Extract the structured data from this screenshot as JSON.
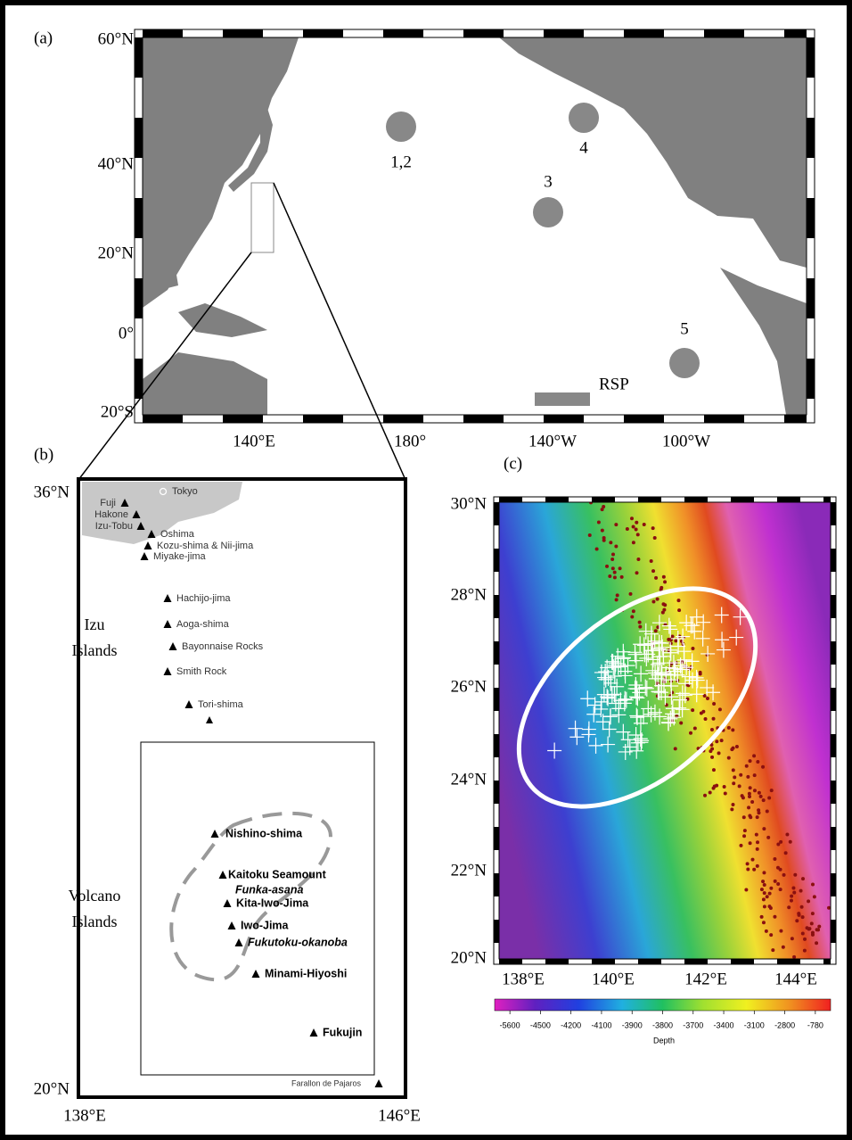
{
  "panel_a": {
    "label": "(a)",
    "lat_labels": [
      "60°N",
      "40°N",
      "20°N",
      "0°",
      "20°S"
    ],
    "lon_labels": [
      "140°E",
      "180°",
      "140°W",
      "100°W"
    ],
    "sites": [
      "1,2",
      "3",
      "4",
      "5"
    ],
    "rsp": "RSP"
  },
  "panel_b": {
    "label": "(b)",
    "lat_labels": [
      "36°N",
      "20°N"
    ],
    "lon_labels": [
      "138°E",
      "146°E"
    ],
    "izu_label": [
      "Izu",
      "Islands"
    ],
    "volcano_label": [
      "Volcano",
      "Islands"
    ],
    "volcanoes": [
      "Tokyo",
      "Fuji",
      "Hakone",
      "Izu-Tobu",
      "Oshima",
      "Kozu-shima & Nii-jima",
      "Miyake-jima",
      "Hachijo-jima",
      "Aoga-shima",
      "Bayonnaise Rocks",
      "Smith Rock",
      "Tori-shima",
      "Nishino-shima",
      "Kaitoku Seamount",
      "Funka-asana",
      "Kita-Iwo-Jima",
      "Iwo-Jima",
      "Fukutoku-okanoba",
      "Minami-Hiyoshi",
      "Fukujin",
      "Farallon de Pajaros"
    ]
  },
  "panel_c": {
    "label": "(c)",
    "lat_labels": [
      "30°N",
      "28°N",
      "26°N",
      "24°N",
      "22°N",
      "20°N"
    ],
    "lon_labels": [
      "138°E",
      "140°E",
      "142°E",
      "144°E"
    ],
    "colorbar": {
      "ticks": [
        -5600,
        -4500,
        -4200,
        -4100,
        -3900,
        -3800,
        -3700,
        -3400,
        -3100,
        -2800,
        -780
      ],
      "label": "Depth"
    }
  }
}
